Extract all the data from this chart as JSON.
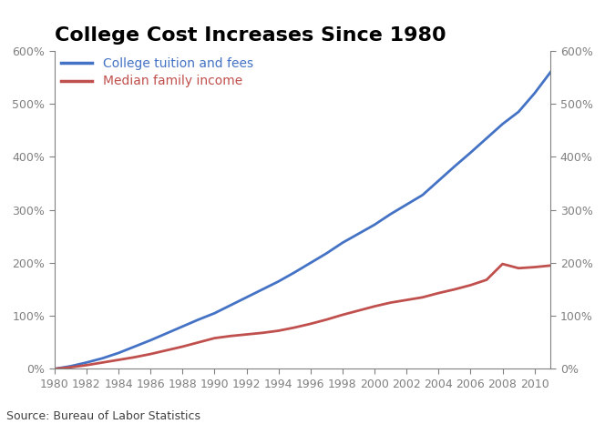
{
  "title": "College Cost Increases Since 1980",
  "source": "Source: Bureau of Labor Statistics",
  "tuition_years": [
    1980,
    1981,
    1982,
    1983,
    1984,
    1985,
    1986,
    1987,
    1988,
    1989,
    1990,
    1991,
    1992,
    1993,
    1994,
    1995,
    1996,
    1997,
    1998,
    1999,
    2000,
    2001,
    2002,
    2003,
    2004,
    2005,
    2006,
    2007,
    2008,
    2009,
    2010,
    2011
  ],
  "tuition_values": [
    0,
    0.05,
    0.12,
    0.2,
    0.3,
    0.42,
    0.54,
    0.67,
    0.8,
    0.93,
    1.05,
    1.2,
    1.35,
    1.5,
    1.65,
    1.82,
    2.0,
    2.18,
    2.38,
    2.55,
    2.72,
    2.92,
    3.1,
    3.28,
    3.55,
    3.82,
    4.08,
    4.35,
    4.62,
    4.85,
    5.2,
    5.6
  ],
  "income_years": [
    1980,
    1981,
    1982,
    1983,
    1984,
    1985,
    1986,
    1987,
    1988,
    1989,
    1990,
    1991,
    1992,
    1993,
    1994,
    1995,
    1996,
    1997,
    1998,
    1999,
    2000,
    2001,
    2002,
    2003,
    2004,
    2005,
    2006,
    2007,
    2008,
    2009,
    2010,
    2011
  ],
  "income_values": [
    0,
    0.03,
    0.07,
    0.12,
    0.17,
    0.22,
    0.28,
    0.35,
    0.42,
    0.5,
    0.58,
    0.62,
    0.65,
    0.68,
    0.72,
    0.78,
    0.85,
    0.93,
    1.02,
    1.1,
    1.18,
    1.25,
    1.3,
    1.35,
    1.43,
    1.5,
    1.58,
    1.68,
    1.98,
    1.9,
    1.92,
    1.95
  ],
  "tuition_color": "#4472C4",
  "income_color": "#C0504D",
  "tuition_label": "College tuition and fees",
  "income_label": "Median family income",
  "ylim": [
    0,
    6.0
  ],
  "yticks": [
    0,
    1.0,
    2.0,
    3.0,
    4.0,
    5.0,
    6.0
  ],
  "ytick_labels": [
    "0%",
    "100%",
    "200%",
    "300%",
    "400%",
    "500%",
    "600%"
  ],
  "xlim": [
    1980,
    2011
  ],
  "xticks": [
    1980,
    1982,
    1984,
    1986,
    1988,
    1990,
    1992,
    1994,
    1996,
    1998,
    2000,
    2002,
    2004,
    2006,
    2008,
    2010
  ],
  "background_color": "#FFFFFF",
  "title_fontsize": 16,
  "legend_fontsize": 10,
  "tick_fontsize": 9,
  "source_fontsize": 9,
  "line_width": 2.0,
  "axis_color": "#808080",
  "tick_label_color": "#404040"
}
